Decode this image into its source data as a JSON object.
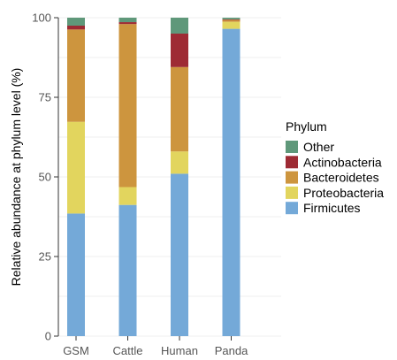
{
  "chart_data": {
    "type": "bar",
    "stacked": true,
    "categories": [
      "GSM",
      "Cattle",
      "Human",
      "Panda"
    ],
    "ylabel": "Relative abundance at phylum level (%)",
    "xlabel": "",
    "ylim": [
      0,
      100
    ],
    "yticks": [
      "0",
      "25",
      "50",
      "75",
      "100"
    ],
    "grid": true,
    "legend_title": "Phylum",
    "legend_position": "right",
    "series": [
      {
        "name": "Firmicutes",
        "color": "#74a9d8",
        "values": [
          38.5,
          41.2,
          51.0,
          96.5
        ]
      },
      {
        "name": "Proteobacteria",
        "color": "#e2d55e",
        "values": [
          28.8,
          5.6,
          7.0,
          2.2
        ]
      },
      {
        "name": "Bacteroidetes",
        "color": "#cd953e",
        "values": [
          29.0,
          51.2,
          26.5,
          0.6
        ]
      },
      {
        "name": "Actinobacteria",
        "color": "#9e2b34",
        "values": [
          1.2,
          0.6,
          10.5,
          0.2
        ]
      },
      {
        "name": "Other",
        "color": "#5f987a",
        "values": [
          2.5,
          1.4,
          5.0,
          0.5
        ]
      }
    ]
  }
}
